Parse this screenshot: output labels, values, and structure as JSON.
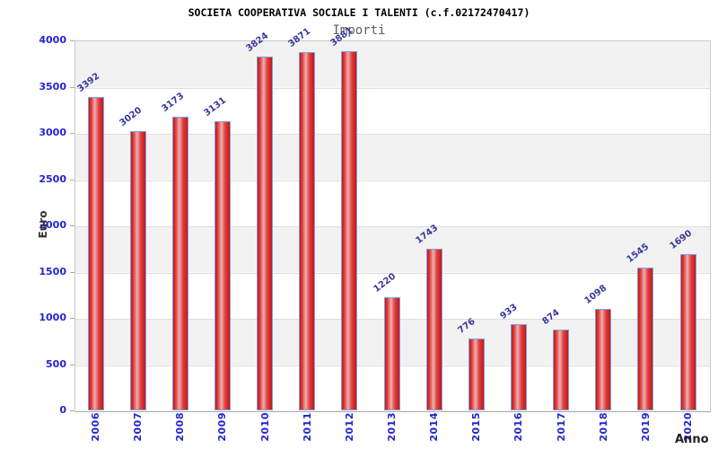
{
  "chart_data": {
    "type": "bar",
    "title": "SOCIETA COOPERATIVA SOCIALE I TALENTI (c.f.02172470417)",
    "subtitle": "Importi",
    "xlabel": "Anno",
    "ylabel": "Euro",
    "categories": [
      "2006",
      "2007",
      "2008",
      "2009",
      "2010",
      "2011",
      "2012",
      "2013",
      "2014",
      "2015",
      "2016",
      "2017",
      "2018",
      "2019",
      "2020"
    ],
    "values": [
      3392,
      3020,
      3173,
      3131,
      3824,
      3871,
      3881,
      1220,
      1743,
      776,
      933,
      874,
      1098,
      1545,
      1690
    ],
    "ylim": [
      0,
      4000
    ],
    "yticks": [
      0,
      500,
      1000,
      1500,
      2000,
      2500,
      3000,
      3500,
      4000
    ],
    "grid": "alternating-horizontal-bands",
    "legend_position": "top-center",
    "colors": {
      "bar_edge": "#7aa0e0",
      "bar_fill_dark": "#c41717",
      "bar_fill_mid": "#e23e3e",
      "bar_fill_highlight": "#e9b2b2",
      "axis_text": "#2424d0",
      "value_label": "#38389b",
      "band_gray": "#f2f2f2",
      "band_white": "#ffffff",
      "title_color": "#000000",
      "subtitle_color": "#5f5f5f"
    }
  }
}
